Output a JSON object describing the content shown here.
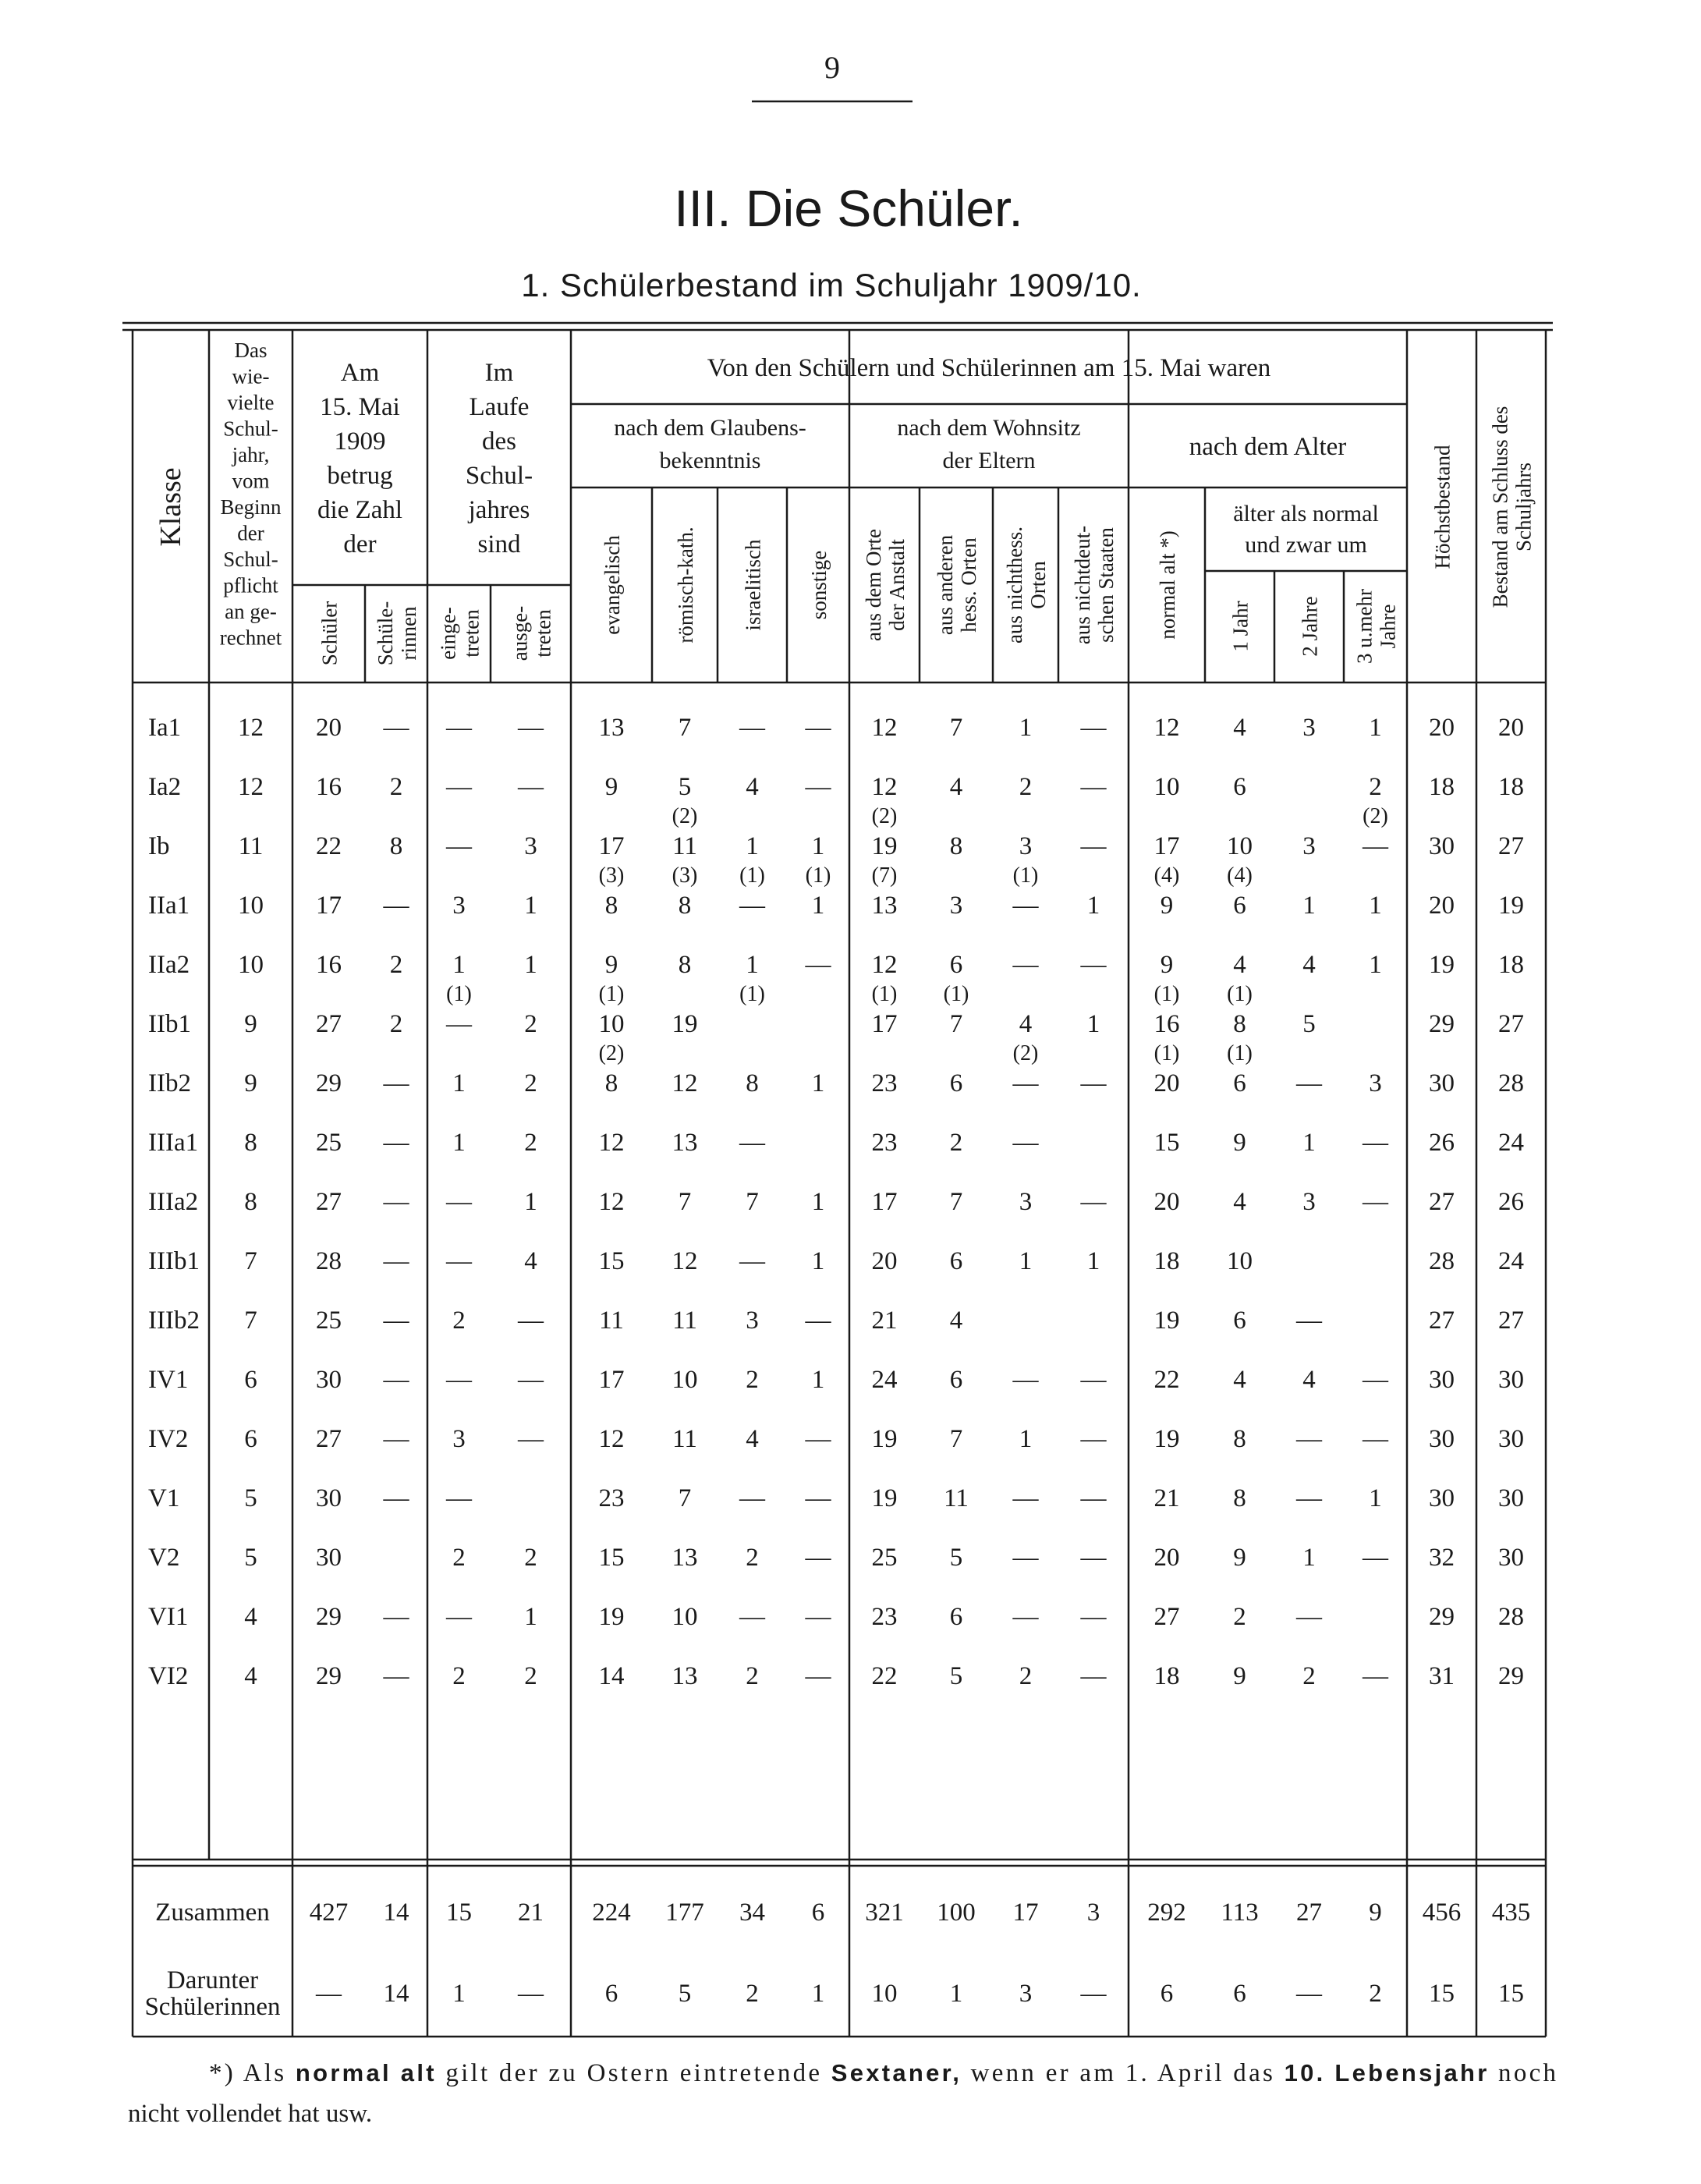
{
  "page_number": "9",
  "title": "III. Die Schüler.",
  "subtitle": "1. Schülerbestand im Schuljahr 1909/10.",
  "table": {
    "headers": {
      "klasse": "Klasse",
      "jahr": [
        "Das",
        "wie-",
        "vielte",
        "Schul-",
        "jahr,",
        "vom",
        "Beginn",
        "der",
        "Schul-",
        "pflicht",
        "an ge-",
        "rechnet"
      ],
      "zahl": [
        "Am",
        "15. Mai",
        "1909",
        "betrug",
        "die Zahl",
        "der"
      ],
      "zahl_sub": [
        [
          "Schüler"
        ],
        [
          "Schüle-",
          "rinnen"
        ]
      ],
      "laufe": [
        "Im",
        "Laufe",
        "des",
        "Schul-",
        "jahres",
        "sind"
      ],
      "laufe_sub": [
        [
          "einge-",
          "treten"
        ],
        [
          "ausge-",
          "treten"
        ]
      ],
      "waren": "Von den Schülern und Schülerinnen am 15. Mai waren",
      "glauben": [
        "nach dem Glaubens-",
        "bekenntnis"
      ],
      "glauben_sub": [
        [
          "evangelisch"
        ],
        [
          "römisch-kath."
        ],
        [
          "israelitisch"
        ],
        [
          "sonstige"
        ]
      ],
      "wohnsitz": [
        "nach dem Wohnsitz",
        "der Eltern"
      ],
      "wohnsitz_sub": [
        [
          "aus dem Orte",
          "der Anstalt"
        ],
        [
          "aus anderen",
          "hess. Orten"
        ],
        [
          "aus nichthess.",
          "Orten"
        ],
        [
          "aus nichtdeut-",
          "schen Staaten"
        ]
      ],
      "alter": "nach dem Alter",
      "normal": [
        "normal alt *)"
      ],
      "aelter": [
        "älter als normal",
        "und zwar um"
      ],
      "aelter_sub": [
        [
          "1 Jahr"
        ],
        [
          "2 Jahre"
        ],
        [
          "3 u.mehr",
          "Jahre"
        ]
      ],
      "hoechst": [
        "Höchstbestand"
      ],
      "schluss": [
        "Bestand am Schluss des",
        "Schuljahrs"
      ]
    },
    "rows": [
      {
        "klasse": "Ia1",
        "cells": [
          "12",
          "20",
          "—",
          "—",
          "—",
          "13",
          "7",
          "—",
          "—",
          "12",
          "7",
          "1",
          "—",
          "12",
          "4",
          "3",
          "1",
          "20",
          "20"
        ]
      },
      {
        "klasse": "Ia2",
        "cells": [
          "12",
          "16",
          "2",
          "—",
          "—",
          "9",
          [
            "5",
            "(2)"
          ],
          "4",
          "—",
          [
            "12",
            "(2)"
          ],
          "4",
          "2",
          "—",
          "10",
          "6",
          null,
          [
            "2",
            "(2)"
          ],
          "18",
          "18"
        ]
      },
      {
        "klasse": "Ib",
        "cells": [
          "11",
          "22",
          "8",
          "—",
          "3",
          [
            "17",
            "(3)"
          ],
          [
            "11",
            "(3)"
          ],
          [
            "1",
            "(1)"
          ],
          [
            "1",
            "(1)"
          ],
          [
            "19",
            "(7)"
          ],
          "8",
          [
            "3",
            "(1)"
          ],
          "—",
          [
            "17",
            "(4)"
          ],
          [
            "10",
            "(4)"
          ],
          "3",
          "—",
          "30",
          "27"
        ]
      },
      {
        "klasse": "IIa1",
        "cells": [
          "10",
          "17",
          "—",
          "3",
          "1",
          "8",
          "8",
          "—",
          "1",
          "13",
          "3",
          "—",
          "1",
          "9",
          "6",
          "1",
          "1",
          "20",
          "19"
        ]
      },
      {
        "klasse": "IIa2",
        "cells": [
          "10",
          "16",
          "2",
          [
            "1",
            "(1)"
          ],
          "1",
          [
            "9",
            "(1)"
          ],
          "8",
          [
            "1",
            "(1)"
          ],
          "—",
          [
            "12",
            "(1)"
          ],
          [
            "6",
            "(1)"
          ],
          "—",
          "—",
          [
            "9",
            "(1)"
          ],
          [
            "4",
            "(1)"
          ],
          "4",
          "1",
          "19",
          "18"
        ]
      },
      {
        "klasse": "IIb1",
        "cells": [
          "9",
          "27",
          "2",
          "—",
          "2",
          [
            "10",
            "(2)"
          ],
          "19",
          null,
          null,
          "17",
          "7",
          [
            "4",
            "(2)"
          ],
          "1",
          [
            "16",
            "(1)"
          ],
          [
            "8",
            "(1)"
          ],
          "5",
          null,
          "29",
          "27"
        ]
      },
      {
        "klasse": "IIb2",
        "cells": [
          "9",
          "29",
          "—",
          "1",
          "2",
          "8",
          "12",
          "8",
          "1",
          "23",
          "6",
          "—",
          "—",
          "20",
          "6",
          "—",
          "3",
          "30",
          "28"
        ]
      },
      {
        "klasse": "IIIa1",
        "cells": [
          "8",
          "25",
          "—",
          "1",
          "2",
          "12",
          "13",
          "—",
          null,
          "23",
          "2",
          "—",
          null,
          "15",
          "9",
          "1",
          "—",
          "26",
          "24"
        ]
      },
      {
        "klasse": "IIIa2",
        "cells": [
          "8",
          "27",
          "—",
          "—",
          "1",
          "12",
          "7",
          "7",
          "1",
          "17",
          "7",
          "3",
          "—",
          "20",
          "4",
          "3",
          "—",
          "27",
          "26"
        ]
      },
      {
        "klasse": "IIIb1",
        "cells": [
          "7",
          "28",
          "—",
          "—",
          "4",
          "15",
          "12",
          "—",
          "1",
          "20",
          "6",
          "1",
          "1",
          "18",
          "10",
          null,
          null,
          "28",
          "24"
        ]
      },
      {
        "klasse": "IIIb2",
        "cells": [
          "7",
          "25",
          "—",
          "2",
          "—",
          "11",
          "11",
          "3",
          "—",
          "21",
          "4",
          null,
          null,
          "19",
          "6",
          "—",
          null,
          "27",
          "27"
        ]
      },
      {
        "klasse": "IV1",
        "cells": [
          "6",
          "30",
          "—",
          "—",
          "—",
          "17",
          "10",
          "2",
          "1",
          "24",
          "6",
          "—",
          "—",
          "22",
          "4",
          "4",
          "—",
          "30",
          "30"
        ]
      },
      {
        "klasse": "IV2",
        "cells": [
          "6",
          "27",
          "—",
          "3",
          "—",
          "12",
          "11",
          "4",
          "—",
          "19",
          "7",
          "1",
          "—",
          "19",
          "8",
          "—",
          "—",
          "30",
          "30"
        ]
      },
      {
        "klasse": "V1",
        "cells": [
          "5",
          "30",
          "—",
          "—",
          null,
          "23",
          "7",
          "—",
          "—",
          "19",
          "11",
          "—",
          "—",
          "21",
          "8",
          "—",
          "1",
          "30",
          "30"
        ]
      },
      {
        "klasse": "V2",
        "cells": [
          "5",
          "30",
          null,
          "2",
          "2",
          "15",
          "13",
          "2",
          "—",
          "25",
          "5",
          "—",
          "—",
          "20",
          "9",
          "1",
          "—",
          "32",
          "30"
        ]
      },
      {
        "klasse": "VI1",
        "cells": [
          "4",
          "29",
          "—",
          "—",
          "1",
          "19",
          "10",
          "—",
          "—",
          "23",
          "6",
          "—",
          "—",
          "27",
          "2",
          "—",
          null,
          "29",
          "28"
        ]
      },
      {
        "klasse": "VI2",
        "cells": [
          "4",
          "29",
          "—",
          "2",
          "2",
          "14",
          "13",
          "2",
          "—",
          "22",
          "5",
          "2",
          "—",
          "18",
          "9",
          "2",
          "—",
          "31",
          "29"
        ]
      }
    ],
    "totals": [
      {
        "label": [
          "Zusammen"
        ],
        "cells": [
          null,
          "427",
          "14",
          "15",
          "21",
          "224",
          "177",
          "34",
          "6",
          "321",
          "100",
          "17",
          "3",
          "292",
          "113",
          "27",
          "9",
          "456",
          "435"
        ]
      },
      {
        "label": [
          "Darunter",
          "Schülerinnen"
        ],
        "cells": [
          null,
          "—",
          "14",
          "1",
          "—",
          "6",
          "5",
          "2",
          "1",
          "10",
          "1",
          "3",
          "—",
          "6",
          "6",
          "—",
          "2",
          "15",
          "15"
        ]
      }
    ]
  },
  "footnote": [
    [
      {
        "text": "*) Als ",
        "bold": false
      },
      {
        "text": "normal alt",
        "bold": true
      },
      {
        "text": " gilt der zu Ostern eintretende ",
        "bold": false
      },
      {
        "text": "Sextaner,",
        "bold": true
      },
      {
        "text": " wenn er am 1. April das ",
        "bold": false
      },
      {
        "text": "10. Lebensjahr",
        "bold": true
      },
      {
        "text": " noch",
        "bold": false
      }
    ],
    [
      {
        "text": "nicht vollendet hat usw.",
        "bold": false
      }
    ]
  ]
}
